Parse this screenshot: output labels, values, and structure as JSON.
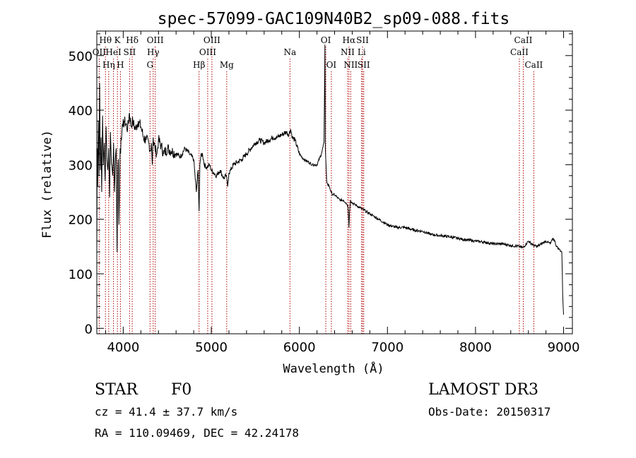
{
  "chart_data": {
    "type": "line",
    "title": "spec-57099-GAC109N40B2_sp09-088.fits",
    "xlabel": "Wavelength (Å)",
    "ylabel": "Flux (relative)",
    "xlim": [
      3700,
      9100
    ],
    "ylim": [
      -10,
      545
    ],
    "xticks": [
      4000,
      5000,
      6000,
      7000,
      8000,
      9000
    ],
    "yticks": [
      0,
      100,
      200,
      300,
      400,
      500
    ],
    "spectrum": {
      "name": "flux",
      "x": [
        3700,
        3705,
        3710,
        3718,
        3725,
        3732,
        3740,
        3748,
        3755,
        3765,
        3775,
        3785,
        3795,
        3805,
        3815,
        3825,
        3835,
        3845,
        3855,
        3862,
        3870,
        3880,
        3890,
        3900,
        3910,
        3920,
        3930,
        3935,
        3940,
        3945,
        3950,
        3960,
        3965,
        3970,
        3975,
        3985,
        3995,
        4010,
        4030,
        4050,
        4070,
        4090,
        4102,
        4115,
        4140,
        4170,
        4200,
        4230,
        4260,
        4290,
        4310,
        4320,
        4330,
        4340,
        4345,
        4350,
        4360,
        4383,
        4400,
        4430,
        4460,
        4500,
        4550,
        4600,
        4650,
        4700,
        4750,
        4800,
        4830,
        4850,
        4861,
        4870,
        4880,
        4900,
        4920,
        4950,
        4980,
        5000,
        5030,
        5060,
        5100,
        5140,
        5170,
        5185,
        5200,
        5220,
        5250,
        5300,
        5350,
        5400,
        5450,
        5500,
        5550,
        5600,
        5650,
        5700,
        5750,
        5800,
        5850,
        5880,
        5900,
        5920,
        5950,
        6000,
        6050,
        6100,
        6150,
        6200,
        6250,
        6280,
        6290,
        6295,
        6300,
        6305,
        6310,
        6320,
        6340,
        6360,
        6380,
        6400,
        6430,
        6460,
        6500,
        6530,
        6550,
        6560,
        6563,
        6570,
        6580,
        6600,
        6650,
        6700,
        6750,
        6800,
        6850,
        6900,
        6950,
        7000,
        7100,
        7200,
        7300,
        7400,
        7500,
        7600,
        7700,
        7800,
        7900,
        8000,
        8100,
        8200,
        8300,
        8400,
        8500,
        8540,
        8600,
        8660,
        8700,
        8750,
        8800,
        8850,
        8880,
        8900,
        8920,
        8950,
        8980,
        8990,
        9000
      ],
      "y": [
        140,
        330,
        260,
        380,
        280,
        450,
        290,
        350,
        250,
        390,
        300,
        340,
        270,
        370,
        310,
        290,
        330,
        240,
        360,
        320,
        300,
        280,
        340,
        250,
        310,
        330,
        140,
        260,
        300,
        310,
        190,
        280,
        330,
        320,
        350,
        360,
        370,
        380,
        375,
        365,
        395,
        370,
        380,
        375,
        365,
        380,
        370,
        350,
        345,
        340,
        325,
        340,
        300,
        350,
        335,
        340,
        330,
        320,
        345,
        335,
        320,
        330,
        325,
        320,
        315,
        330,
        320,
        310,
        250,
        290,
        215,
        300,
        315,
        320,
        300,
        295,
        300,
        290,
        285,
        280,
        290,
        275,
        280,
        260,
        285,
        290,
        300,
        305,
        310,
        320,
        330,
        340,
        345,
        340,
        345,
        350,
        350,
        355,
        360,
        355,
        365,
        350,
        345,
        320,
        310,
        305,
        300,
        300,
        320,
        340,
        520,
        330,
        310,
        290,
        270,
        265,
        260,
        250,
        245,
        245,
        240,
        235,
        235,
        230,
        225,
        200,
        185,
        215,
        235,
        230,
        225,
        220,
        215,
        210,
        205,
        200,
        195,
        190,
        185,
        185,
        180,
        178,
        172,
        170,
        168,
        165,
        162,
        160,
        158,
        155,
        155,
        152,
        150,
        148,
        160,
        152,
        150,
        155,
        160,
        155,
        165,
        160,
        150,
        145,
        140,
        60,
        25
      ]
    },
    "line_markers": [
      {
        "label": "Hθ",
        "x": 3798,
        "row": 0
      },
      {
        "label": "K",
        "x": 3934,
        "row": 0
      },
      {
        "label": "Hδ",
        "x": 4102,
        "row": 0
      },
      {
        "label": "OIII",
        "x": 4363,
        "row": 0
      },
      {
        "label": "OIII",
        "x": 5007,
        "row": 0
      },
      {
        "label": "OI",
        "x": 6300,
        "row": 0
      },
      {
        "label": "Hα",
        "x": 6563,
        "row": 0
      },
      {
        "label": "SII",
        "x": 6717,
        "row": 0
      },
      {
        "label": "CaII",
        "x": 8542,
        "row": 0
      },
      {
        "label": "OII",
        "x": 3727,
        "row": 1
      },
      {
        "label": "HeI",
        "x": 3889,
        "row": 1
      },
      {
        "label": "SII",
        "x": 4072,
        "row": 1
      },
      {
        "label": "Hγ",
        "x": 4340,
        "row": 1
      },
      {
        "label": "OIII",
        "x": 4959,
        "row": 1
      },
      {
        "label": "Na",
        "x": 5893,
        "row": 1
      },
      {
        "label": "NII",
        "x": 6548,
        "row": 1
      },
      {
        "label": "Li",
        "x": 6707,
        "row": 1
      },
      {
        "label": "CaII",
        "x": 8498,
        "row": 1
      },
      {
        "label": "Hη",
        "x": 3835,
        "row": 2
      },
      {
        "label": "H",
        "x": 3968,
        "row": 2
      },
      {
        "label": "G",
        "x": 4304,
        "row": 2
      },
      {
        "label": "Hβ",
        "x": 4861,
        "row": 2
      },
      {
        "label": "Mg",
        "x": 5175,
        "row": 2
      },
      {
        "label": "OI",
        "x": 6363,
        "row": 2
      },
      {
        "label": "NII",
        "x": 6583,
        "row": 2
      },
      {
        "label": "SII",
        "x": 6731,
        "row": 2
      },
      {
        "label": "CaII",
        "x": 8662,
        "row": 2
      }
    ],
    "marker_color": "#b00000",
    "line_color": "#000000"
  },
  "info": {
    "obj_class": "STAR",
    "subclass": "F0",
    "survey": "LAMOST DR3",
    "cz": "cz = 41.4 ± 37.7 km/s",
    "obs_date": "Obs-Date: 20150317",
    "coords": "RA = 110.09469, DEC =  42.24178"
  }
}
